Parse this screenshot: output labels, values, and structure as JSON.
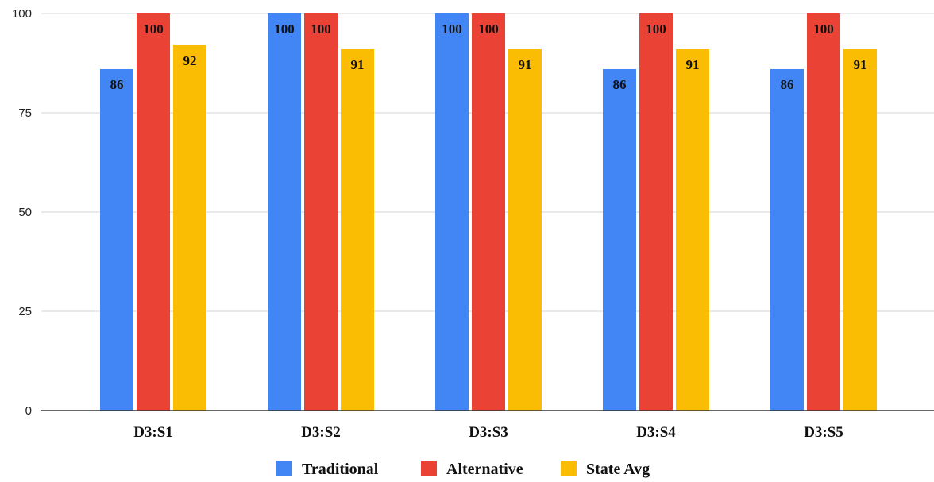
{
  "chart_data": {
    "type": "bar",
    "categories": [
      "D3:S1",
      "D3:S2",
      "D3:S3",
      "D3:S4",
      "D3:S5"
    ],
    "series": [
      {
        "name": "Traditional",
        "color": "#4285F4",
        "values": [
          86,
          100,
          100,
          86,
          86
        ]
      },
      {
        "name": "Alternative",
        "color": "#EA4335",
        "values": [
          100,
          100,
          100,
          100,
          100
        ]
      },
      {
        "name": "State Avg",
        "color": "#FBBC04",
        "values": [
          92,
          91,
          91,
          91,
          91
        ]
      }
    ],
    "ylim": [
      0,
      100
    ],
    "yticks": [
      0,
      25,
      50,
      75,
      100
    ],
    "grid": true,
    "legend_position": "bottom"
  }
}
